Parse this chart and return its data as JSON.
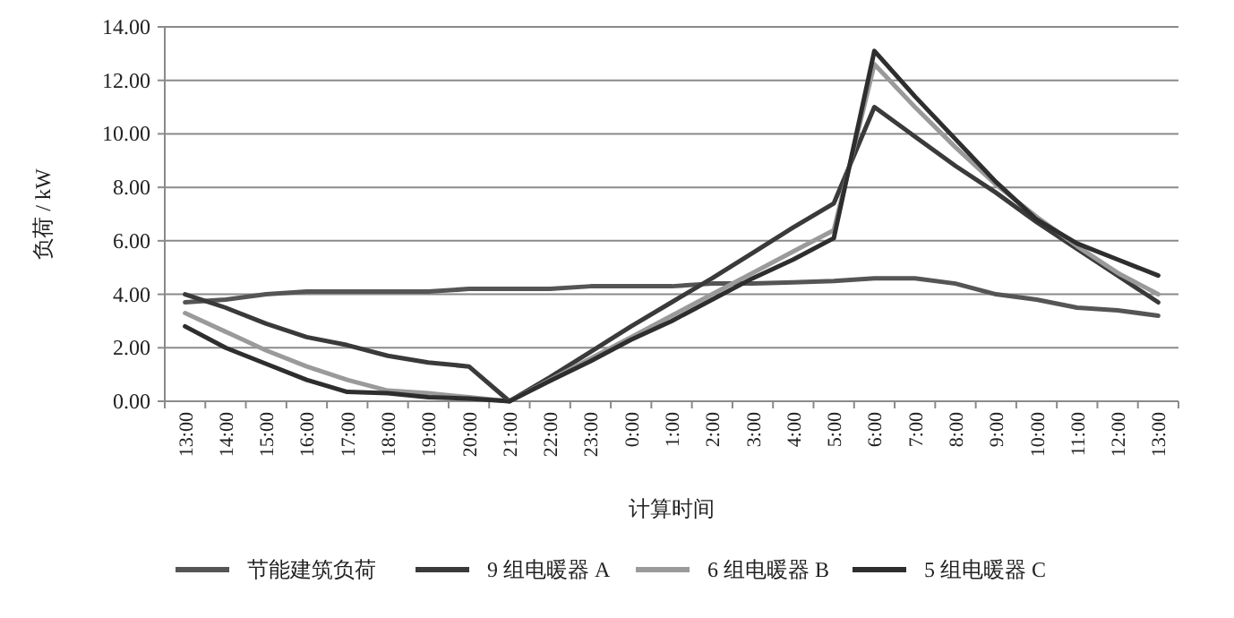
{
  "chart_data": {
    "type": "line",
    "xlabel": "计算时间",
    "ylabel": "负荷 / kW",
    "categories": [
      "13:00",
      "14:00",
      "15:00",
      "16:00",
      "17:00",
      "18:00",
      "19:00",
      "20:00",
      "21:00",
      "22:00",
      "23:00",
      "0:00",
      "1:00",
      "2:00",
      "3:00",
      "4:00",
      "5:00",
      "6:00",
      "7:00",
      "8:00",
      "9:00",
      "10:00",
      "11:00",
      "12:00",
      "13:00"
    ],
    "series": [
      {
        "name": "节能建筑负荷",
        "color": "#555555",
        "values": [
          3.7,
          3.8,
          4.0,
          4.1,
          4.1,
          4.1,
          4.1,
          4.2,
          4.2,
          4.2,
          4.3,
          4.3,
          4.3,
          4.4,
          4.4,
          4.45,
          4.5,
          4.6,
          4.6,
          4.4,
          4.0,
          3.8,
          3.5,
          3.4,
          3.2
        ]
      },
      {
        "name": "9 组电暖器 A",
        "color": "#3a3a3a",
        "values": [
          4.0,
          3.5,
          2.9,
          2.4,
          2.1,
          1.7,
          1.45,
          1.3,
          0.0,
          0.9,
          1.85,
          2.8,
          3.7,
          4.6,
          5.55,
          6.5,
          7.4,
          11.0,
          9.9,
          8.8,
          7.8,
          6.7,
          5.7,
          4.7,
          3.7
        ]
      },
      {
        "name": "6 组电暖器 B",
        "color": "#9a9a9a",
        "values": [
          3.3,
          2.6,
          1.9,
          1.3,
          0.8,
          0.4,
          0.3,
          0.15,
          0.0,
          0.8,
          1.6,
          2.4,
          3.2,
          4.0,
          4.8,
          5.6,
          6.4,
          12.6,
          11.0,
          9.5,
          8.1,
          6.9,
          5.8,
          4.8,
          4.0
        ]
      },
      {
        "name": "5 组电暖器 C",
        "color": "#2e2e2e",
        "values": [
          2.8,
          2.0,
          1.4,
          0.8,
          0.35,
          0.3,
          0.15,
          0.1,
          0.0,
          0.76,
          1.5,
          2.3,
          3.0,
          3.8,
          4.6,
          5.3,
          6.1,
          13.1,
          11.4,
          9.8,
          8.2,
          6.8,
          5.9,
          5.3,
          4.7
        ]
      }
    ],
    "ylim": [
      0,
      14
    ],
    "yticks": [
      {
        "value": 0,
        "label": "0.00"
      },
      {
        "value": 2,
        "label": "2.00"
      },
      {
        "value": 4,
        "label": "4.00"
      },
      {
        "value": 6,
        "label": "6.00"
      },
      {
        "value": 8,
        "label": "8.00"
      },
      {
        "value": 10,
        "label": "10.00"
      },
      {
        "value": 12,
        "label": "12.00"
      },
      {
        "value": 14,
        "label": "14.00"
      }
    ],
    "grid": "y",
    "legend": "bottom"
  }
}
